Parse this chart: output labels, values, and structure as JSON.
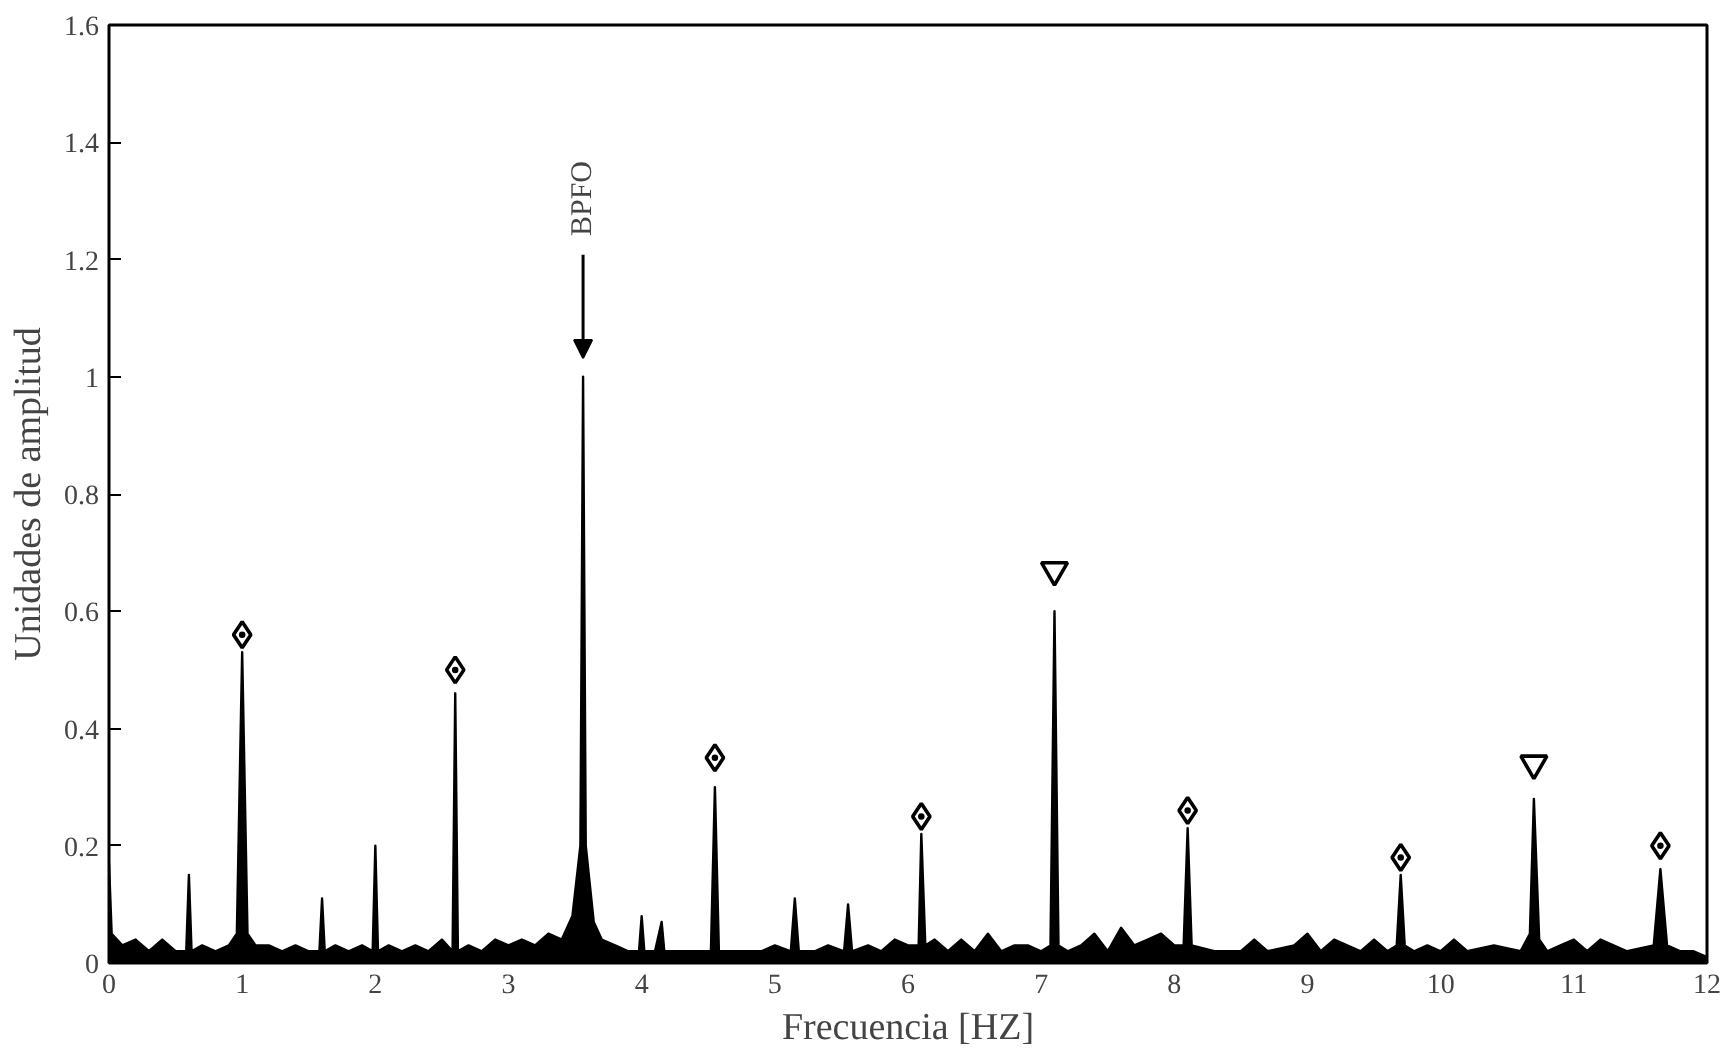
{
  "chart_data": {
    "type": "area",
    "xlabel": "Frecuencia [HZ]",
    "ylabel": "Unidades de amplitud",
    "xlim": [
      0,
      12
    ],
    "ylim": [
      0,
      1.6
    ],
    "xticks": [
      0,
      1,
      2,
      3,
      4,
      5,
      6,
      7,
      8,
      9,
      10,
      11,
      12
    ],
    "yticks": [
      0,
      0.2,
      0.4,
      0.6,
      0.8,
      1,
      1.2,
      1.4,
      1.6
    ],
    "grid": false,
    "annotations": [
      "BPFO"
    ],
    "series": [
      {
        "color": "#000000",
        "x": [
          0,
          0.02,
          0.1,
          0.2,
          0.3,
          0.4,
          0.5,
          0.58,
          0.6,
          0.62,
          0.7,
          0.8,
          0.9,
          0.96,
          1.0,
          1.04,
          1.1,
          1.2,
          1.3,
          1.4,
          1.5,
          1.58,
          1.6,
          1.62,
          1.7,
          1.8,
          1.9,
          1.98,
          2.0,
          2.02,
          2.1,
          2.2,
          2.3,
          2.4,
          2.5,
          2.58,
          2.6,
          2.62,
          2.7,
          2.8,
          2.9,
          3.0,
          3.1,
          3.2,
          3.3,
          3.4,
          3.48,
          3.54,
          3.56,
          3.58,
          3.64,
          3.7,
          3.8,
          3.9,
          3.98,
          4.0,
          4.02,
          4.1,
          4.15,
          4.17,
          4.3,
          4.4,
          4.52,
          4.55,
          4.58,
          4.7,
          4.8,
          4.9,
          5.0,
          5.12,
          5.15,
          5.18,
          5.3,
          5.4,
          5.52,
          5.55,
          5.58,
          5.7,
          5.8,
          5.9,
          6.0,
          6.08,
          6.1,
          6.13,
          6.2,
          6.3,
          6.4,
          6.5,
          6.6,
          6.7,
          6.8,
          6.9,
          7.0,
          7.07,
          7.1,
          7.13,
          7.2,
          7.3,
          7.4,
          7.5,
          7.6,
          7.7,
          7.8,
          7.9,
          8.0,
          8.07,
          8.1,
          8.13,
          8.3,
          8.5,
          8.6,
          8.7,
          8.9,
          9.0,
          9.1,
          9.2,
          9.4,
          9.5,
          9.6,
          9.67,
          9.7,
          9.73,
          9.8,
          9.9,
          10.0,
          10.1,
          10.2,
          10.4,
          10.6,
          10.67,
          10.7,
          10.74,
          10.8,
          10.9,
          11.0,
          11.1,
          11.2,
          11.4,
          11.6,
          11.65,
          11.7,
          11.8,
          11.9,
          12.0
        ],
        "values": [
          0.17,
          0.05,
          0.03,
          0.04,
          0.02,
          0.04,
          0.02,
          0.02,
          0.15,
          0.02,
          0.03,
          0.02,
          0.03,
          0.05,
          0.53,
          0.05,
          0.03,
          0.03,
          0.02,
          0.03,
          0.02,
          0.02,
          0.11,
          0.02,
          0.03,
          0.02,
          0.03,
          0.02,
          0.2,
          0.02,
          0.03,
          0.02,
          0.03,
          0.02,
          0.04,
          0.02,
          0.46,
          0.02,
          0.03,
          0.02,
          0.04,
          0.03,
          0.04,
          0.03,
          0.05,
          0.04,
          0.08,
          0.2,
          1.0,
          0.2,
          0.07,
          0.04,
          0.03,
          0.02,
          0.02,
          0.08,
          0.02,
          0.02,
          0.07,
          0.02,
          0.02,
          0.02,
          0.02,
          0.3,
          0.02,
          0.02,
          0.02,
          0.02,
          0.03,
          0.02,
          0.11,
          0.02,
          0.02,
          0.03,
          0.02,
          0.1,
          0.02,
          0.03,
          0.02,
          0.04,
          0.03,
          0.03,
          0.22,
          0.03,
          0.04,
          0.02,
          0.04,
          0.02,
          0.05,
          0.02,
          0.03,
          0.03,
          0.02,
          0.03,
          0.6,
          0.03,
          0.02,
          0.03,
          0.05,
          0.02,
          0.06,
          0.03,
          0.04,
          0.05,
          0.03,
          0.03,
          0.23,
          0.03,
          0.02,
          0.02,
          0.04,
          0.02,
          0.03,
          0.05,
          0.02,
          0.04,
          0.02,
          0.04,
          0.02,
          0.03,
          0.15,
          0.03,
          0.02,
          0.03,
          0.02,
          0.04,
          0.02,
          0.03,
          0.02,
          0.05,
          0.28,
          0.04,
          0.02,
          0.03,
          0.04,
          0.02,
          0.04,
          0.02,
          0.03,
          0.16,
          0.03,
          0.02,
          0.02,
          0.01
        ]
      },
      {
        "type": "scatter",
        "marker": "diamond",
        "color": "#000000",
        "x": [
          1.0,
          2.6,
          4.55,
          6.1,
          8.1,
          9.7,
          11.65
        ],
        "values": [
          0.56,
          0.5,
          0.35,
          0.25,
          0.26,
          0.18,
          0.2
        ]
      },
      {
        "type": "scatter",
        "marker": "triangle",
        "color": "#000000",
        "x": [
          7.1,
          10.7
        ],
        "values": [
          0.67,
          0.34
        ]
      }
    ]
  }
}
